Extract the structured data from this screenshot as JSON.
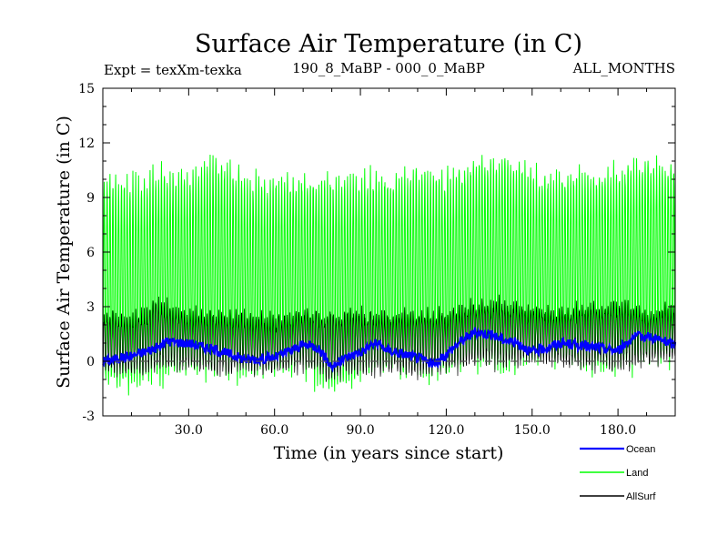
{
  "chart_data": {
    "type": "line",
    "title": "Surface Air Temperature (in C)",
    "subtitle_left": "Expt = texXm-texka",
    "subtitle_center": "190_8_MaBP - 000_0_MaBP",
    "subtitle_right": "ALL_MONTHS",
    "xlabel": "Time (in years since start)",
    "ylabel": "Surface Air Temperature (in C)",
    "xlim": [
      0,
      200
    ],
    "ylim": [
      -3,
      15
    ],
    "x_ticks": [
      30,
      60,
      90,
      120,
      150,
      180
    ],
    "x_tick_labels": [
      "30.0",
      "60.0",
      "90.0",
      "120.0",
      "150.0",
      "180.0"
    ],
    "y_ticks": [
      -3,
      0,
      3,
      6,
      9,
      12,
      15
    ],
    "y_tick_labels": [
      "-3",
      "0",
      "3",
      "6",
      "9",
      "12",
      "15"
    ],
    "reference_line": 0,
    "series": [
      {
        "name": "Land",
        "color": "#00ff00",
        "envelope_x": [
          0,
          10,
          20,
          30,
          40,
          50,
          60,
          70,
          80,
          90,
          100,
          110,
          120,
          130,
          140,
          150,
          160,
          170,
          180,
          190,
          200
        ],
        "envelope_max": [
          10.5,
          10.3,
          10.8,
          10.6,
          11.5,
          10.4,
          10.2,
          10.6,
          10.3,
          10.7,
          10.4,
          10.9,
          10.6,
          11.3,
          11.6,
          10.8,
          10.5,
          10.9,
          11.0,
          11.5,
          11.0
        ],
        "envelope_min": [
          -1.6,
          -1.9,
          -1.3,
          -1.0,
          -1.1,
          -1.2,
          -1.0,
          -1.0,
          -2.0,
          -1.4,
          -1.0,
          -1.3,
          -1.2,
          -0.7,
          -1.0,
          -0.5,
          -0.3,
          -0.8,
          -1.0,
          -0.4,
          -0.3
        ]
      },
      {
        "name": "AllSurf",
        "color": "#000000",
        "envelope_x": [
          0,
          10,
          20,
          30,
          40,
          50,
          60,
          70,
          80,
          90,
          100,
          110,
          120,
          130,
          140,
          150,
          160,
          170,
          180,
          190,
          200
        ],
        "envelope_max": [
          2.9,
          2.7,
          3.5,
          3.0,
          2.9,
          2.8,
          2.5,
          3.0,
          2.9,
          3.0,
          2.8,
          3.1,
          3.0,
          3.5,
          3.5,
          3.2,
          3.0,
          3.4,
          3.6,
          3.0,
          3.3
        ],
        "envelope_min": [
          -0.8,
          -1.1,
          -0.6,
          -0.7,
          -0.9,
          -0.8,
          -0.8,
          -0.7,
          -1.3,
          -0.9,
          -0.7,
          -1.0,
          -0.8,
          -0.4,
          -0.5,
          -0.3,
          -0.4,
          -0.6,
          -0.7,
          -0.3,
          -0.2
        ]
      },
      {
        "name": "Ocean",
        "color": "#0000ff",
        "x": [
          0,
          10,
          20,
          22,
          30,
          40,
          50,
          60,
          70,
          75,
          80,
          85,
          90,
          95,
          100,
          110,
          116,
          120,
          125,
          130,
          135,
          140,
          145,
          150,
          160,
          170,
          180,
          185,
          190,
          200
        ],
        "values": [
          0.0,
          0.3,
          0.8,
          1.1,
          1.0,
          0.6,
          0.1,
          0.2,
          0.9,
          0.8,
          -0.3,
          0.2,
          0.5,
          1.0,
          0.6,
          0.2,
          -0.2,
          0.4,
          1.1,
          1.6,
          1.5,
          1.2,
          1.0,
          0.5,
          1.0,
          0.8,
          0.6,
          1.3,
          1.4,
          0.9
        ]
      }
    ],
    "legend": [
      {
        "label": "Ocean",
        "color": "#0000ff"
      },
      {
        "label": "Land",
        "color": "#00ff00"
      },
      {
        "label": "AllSurf",
        "color": "#000000"
      }
    ]
  }
}
